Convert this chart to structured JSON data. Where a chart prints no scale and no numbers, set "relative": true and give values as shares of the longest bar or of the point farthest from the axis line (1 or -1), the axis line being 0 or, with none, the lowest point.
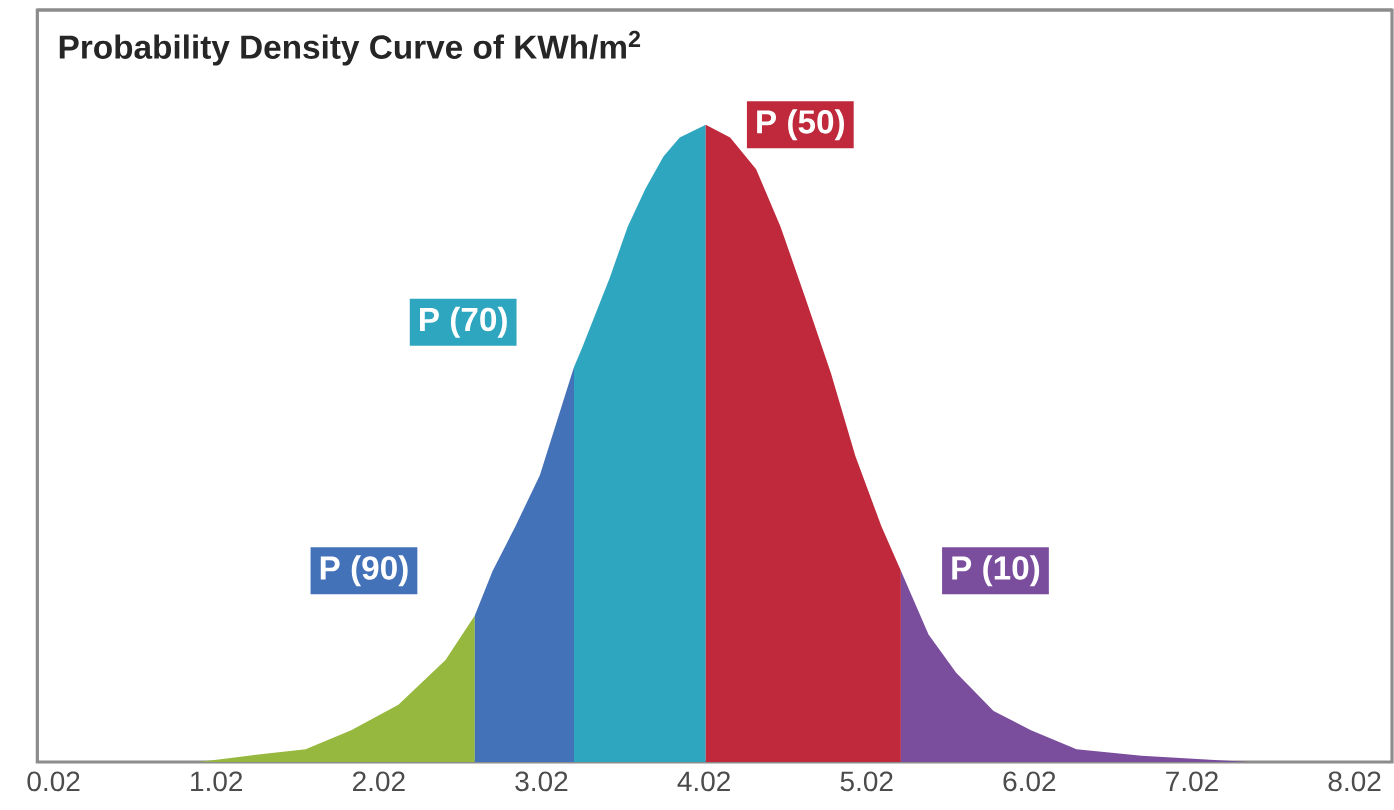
{
  "chart_data": {
    "type": "area",
    "title": "Probability Density Curve of KWh/m$^{2}$",
    "relative": true,
    "xlim": [
      -0.08,
      8.25
    ],
    "xticks": [
      0.02,
      1.02,
      2.02,
      3.02,
      4.02,
      5.02,
      6.02,
      7.02,
      8.02
    ],
    "series": [
      {
        "color": "#96b83e",
        "x": [
          0.91,
          1.22,
          1.57,
          1.85,
          2.14,
          2.43,
          2.61
        ],
        "values": [
          0,
          0.01,
          0.02,
          0.05,
          0.09,
          0.16,
          0.23
        ]
      },
      {
        "name": "P (90)",
        "color": "#4472b8",
        "x": [
          2.61,
          2.72,
          2.86,
          3.01,
          3.22
        ],
        "values": [
          0.23,
          0.3,
          0.37,
          0.45,
          0.62
        ]
      },
      {
        "name": "P (70)",
        "color": "#2fa6c0",
        "x": [
          3.22,
          3.27,
          3.44,
          3.55,
          3.66,
          3.77,
          3.87,
          4.03
        ],
        "values": [
          0.62,
          0.65,
          0.76,
          0.84,
          0.9,
          0.95,
          0.98,
          1.0
        ]
      },
      {
        "name": "P (50)",
        "color": "#c0293b",
        "x": [
          4.03,
          4.18,
          4.34,
          4.49,
          4.64,
          4.8,
          4.95,
          5.11,
          5.23
        ],
        "values": [
          1.0,
          0.98,
          0.93,
          0.84,
          0.73,
          0.61,
          0.48,
          0.37,
          0.3
        ]
      },
      {
        "name": "P (10)",
        "color": "#7a4e9c",
        "x": [
          5.23,
          5.4,
          5.57,
          5.8,
          6.03,
          6.31,
          6.71,
          7.37
        ],
        "values": [
          0.3,
          0.2,
          0.14,
          0.08,
          0.05,
          0.02,
          0.01,
          0
        ]
      }
    ]
  }
}
